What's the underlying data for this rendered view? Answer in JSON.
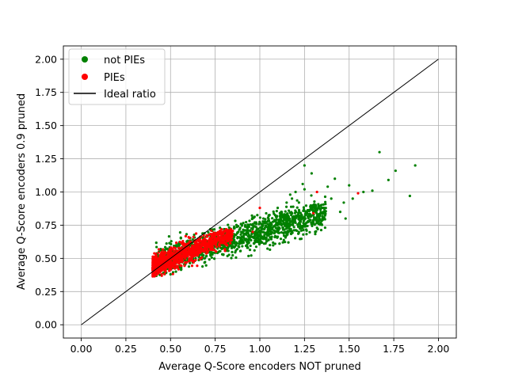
{
  "chart_data": {
    "type": "scatter",
    "title": "",
    "xlabel": "Average Q-Score encoders NOT pruned",
    "ylabel": "Average Q-Score encoders 0.9 pruned",
    "xlim": [
      -0.1,
      2.1
    ],
    "ylim": [
      -0.1,
      2.1
    ],
    "xticks": [
      0.0,
      0.25,
      0.5,
      0.75,
      1.0,
      1.25,
      1.5,
      1.75,
      2.0
    ],
    "yticks": [
      0.0,
      0.25,
      0.5,
      0.75,
      1.0,
      1.25,
      1.5,
      1.75,
      2.0
    ],
    "xtick_labels": [
      "0.00",
      "0.25",
      "0.50",
      "0.75",
      "1.00",
      "1.25",
      "1.50",
      "1.75",
      "2.00"
    ],
    "ytick_labels": [
      "0.00",
      "0.25",
      "0.50",
      "0.75",
      "1.00",
      "1.25",
      "1.50",
      "1.75",
      "2.00"
    ],
    "grid": true,
    "legend_position": "top-left",
    "series": [
      {
        "name": "not PIEs",
        "color": "#008000",
        "marker": "dot",
        "points": [
          [
            1.67,
            1.3
          ],
          [
            1.76,
            1.16
          ],
          [
            1.87,
            1.2
          ],
          [
            1.84,
            0.97
          ],
          [
            1.72,
            1.09
          ],
          [
            1.63,
            1.01
          ],
          [
            1.58,
            1.0
          ],
          [
            1.5,
            1.05
          ],
          [
            1.52,
            0.95
          ],
          [
            1.47,
            0.92
          ],
          [
            1.45,
            0.85
          ],
          [
            1.48,
            0.8
          ],
          [
            1.42,
            1.1
          ],
          [
            1.38,
            1.04
          ],
          [
            1.4,
            0.95
          ],
          [
            1.36,
            0.88
          ],
          [
            1.35,
            0.8
          ],
          [
            1.3,
            0.9
          ],
          [
            1.29,
            1.14
          ],
          [
            1.25,
            1.02
          ],
          [
            1.24,
            1.06
          ],
          [
            1.27,
            0.78
          ],
          [
            1.31,
            0.7
          ],
          [
            1.33,
            0.76
          ],
          [
            1.2,
            1.0
          ],
          [
            1.18,
            0.95
          ],
          [
            1.15,
            0.92
          ],
          [
            1.22,
            0.86
          ],
          [
            1.12,
            0.85
          ],
          [
            1.1,
            0.88
          ],
          [
            1.05,
            0.82
          ],
          [
            1.08,
            0.78
          ],
          [
            1.02,
            0.8
          ],
          [
            0.98,
            0.76
          ],
          [
            0.96,
            0.72
          ],
          [
            1.0,
            0.7
          ],
          [
            0.94,
            0.66
          ],
          [
            0.9,
            0.75
          ],
          [
            0.88,
            0.7
          ],
          [
            0.85,
            0.68
          ],
          [
            0.82,
            0.65
          ],
          [
            0.8,
            0.72
          ],
          [
            0.78,
            0.6
          ],
          [
            0.75,
            0.62
          ],
          [
            0.72,
            0.58
          ],
          [
            0.7,
            0.55
          ],
          [
            0.68,
            0.6
          ],
          [
            0.66,
            0.52
          ],
          [
            0.64,
            0.5
          ],
          [
            0.62,
            0.56
          ],
          [
            0.6,
            0.48
          ],
          [
            0.58,
            0.45
          ],
          [
            0.56,
            0.42
          ],
          [
            0.55,
            0.5
          ],
          [
            0.53,
            0.4
          ],
          [
            0.5,
            0.38
          ],
          [
            0.52,
            0.46
          ],
          [
            0.48,
            0.42
          ],
          [
            1.25,
            1.2
          ],
          [
            1.17,
            0.98
          ],
          [
            0.97,
            0.56
          ],
          [
            0.93,
            0.58
          ],
          [
            1.05,
            0.64
          ],
          [
            1.1,
            0.7
          ],
          [
            1.15,
            0.75
          ]
        ]
      },
      {
        "name": "PIEs",
        "color": "#ff0000",
        "marker": "dot",
        "points": [
          [
            0.42,
            0.4
          ],
          [
            0.45,
            0.38
          ],
          [
            0.48,
            0.44
          ],
          [
            0.5,
            0.46
          ],
          [
            0.52,
            0.5
          ],
          [
            0.55,
            0.48
          ],
          [
            0.58,
            0.52
          ],
          [
            0.6,
            0.55
          ],
          [
            0.62,
            0.5
          ],
          [
            0.65,
            0.58
          ],
          [
            0.68,
            0.56
          ],
          [
            0.7,
            0.6
          ],
          [
            0.72,
            0.64
          ],
          [
            0.75,
            0.62
          ],
          [
            0.78,
            0.66
          ],
          [
            0.8,
            0.62
          ],
          [
            0.46,
            0.42
          ],
          [
            0.54,
            0.44
          ],
          [
            0.57,
            0.6
          ],
          [
            0.63,
            0.48
          ],
          [
            1.0,
            0.88
          ],
          [
            1.32,
            1.0
          ],
          [
            1.55,
            0.99
          ],
          [
            1.3,
            0.84
          ],
          [
            0.96,
            0.7
          ]
        ]
      }
    ],
    "reference_line": {
      "name": "Ideal ratio",
      "color": "#000000",
      "x": [
        0.0,
        2.0
      ],
      "y": [
        0.0,
        2.0
      ]
    }
  }
}
